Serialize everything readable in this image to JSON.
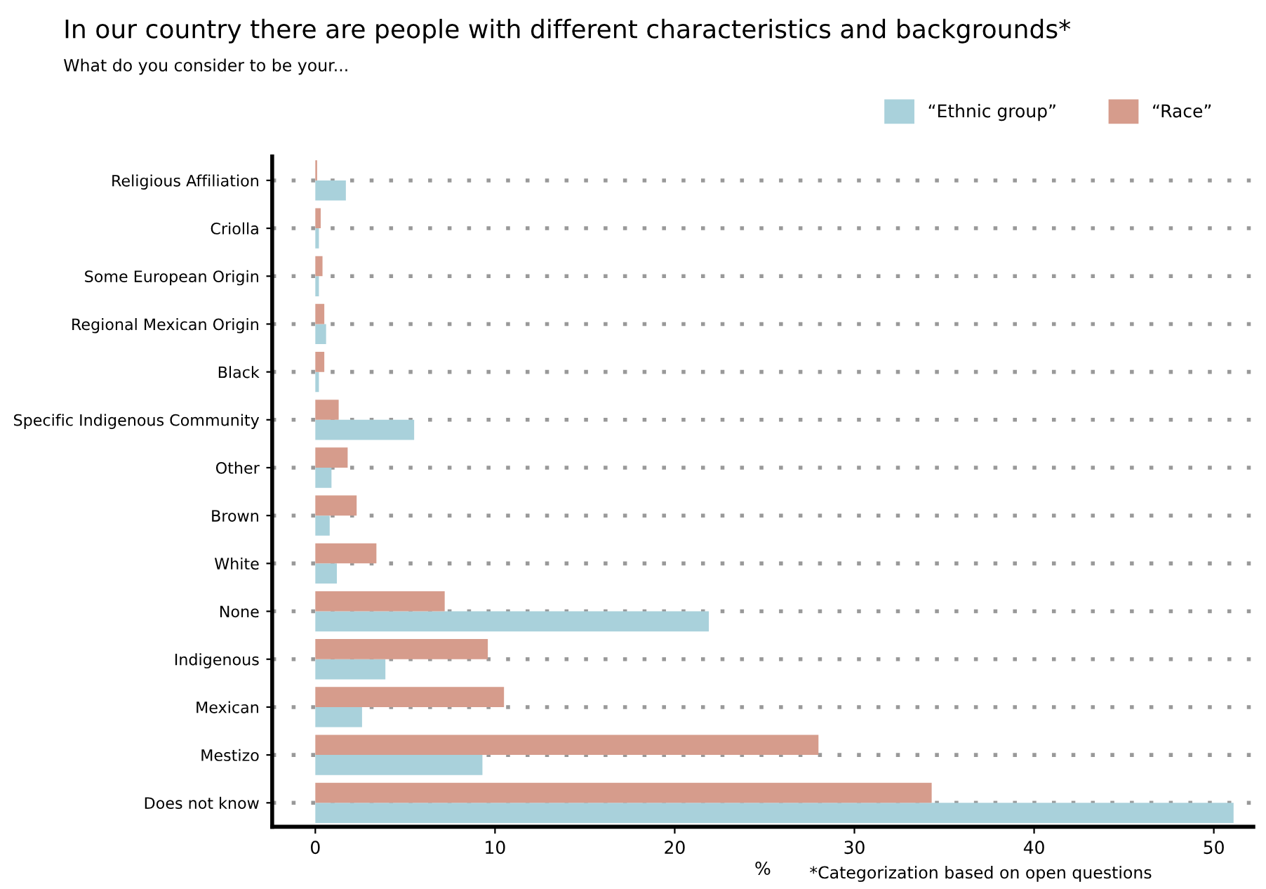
{
  "chart_data": {
    "type": "bar",
    "orientation": "horizontal",
    "title": "In our country there are people with different characteristics and backgrounds*",
    "subtitle": "What do you consider to be your...",
    "xlabel": "%",
    "annotations": [
      "*Categorization based on open questions"
    ],
    "categories": [
      "Religious Affiliation",
      "Criolla",
      "Some European Origin",
      "Regional Mexican Origin",
      "Black",
      "Specific Indigenous Community",
      "Other",
      "Brown",
      "White",
      "None",
      "Indigenous",
      "Mexican",
      "Mestizo",
      "Does not know"
    ],
    "series": [
      {
        "name": "“Ethnic group”",
        "color": "#a9d1db",
        "values": [
          1.7,
          0.2,
          0.2,
          0.6,
          0.2,
          5.5,
          0.9,
          0.8,
          1.2,
          21.9,
          3.9,
          2.6,
          9.3,
          51.1
        ]
      },
      {
        "name": "“Race”",
        "color": "#d69c8c",
        "values": [
          0.1,
          0.3,
          0.4,
          0.5,
          0.5,
          1.3,
          1.8,
          2.3,
          3.4,
          7.2,
          9.6,
          10.5,
          28.0,
          34.3
        ]
      }
    ],
    "xlim": [
      -2.4,
      52.2
    ],
    "xticks": [
      0,
      10,
      20,
      30,
      40,
      50
    ],
    "grid": "y",
    "legend": "top right"
  }
}
